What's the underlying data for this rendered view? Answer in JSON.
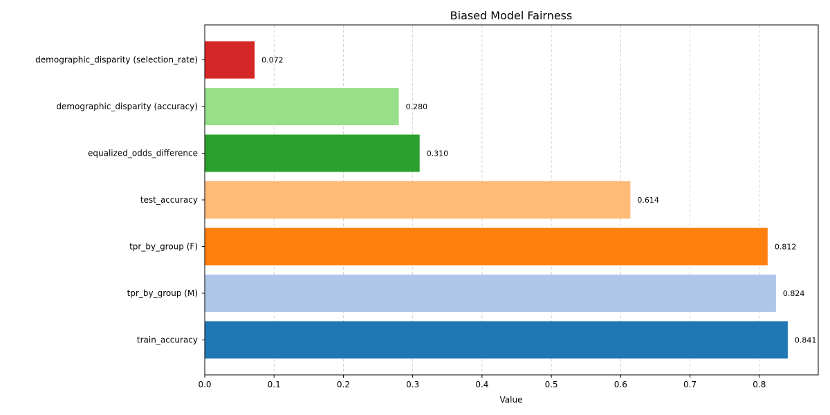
{
  "chart_data": {
    "type": "bar",
    "orientation": "horizontal",
    "title": "Biased Model Fairness",
    "xlabel": "Value",
    "ylabel": "",
    "xlim": [
      0,
      0.885
    ],
    "xticks": [
      "0.0",
      "0.1",
      "0.2",
      "0.3",
      "0.4",
      "0.5",
      "0.6",
      "0.7",
      "0.8"
    ],
    "grid": "x-dashed",
    "bars": [
      {
        "category": "train_accuracy",
        "value": 0.841,
        "label": "0.841",
        "color": "#1f77b4"
      },
      {
        "category": "tpr_by_group (M)",
        "value": 0.824,
        "label": "0.824",
        "color": "#aec7e8"
      },
      {
        "category": "tpr_by_group (F)",
        "value": 0.812,
        "label": "0.812",
        "color": "#ff7f0e"
      },
      {
        "category": "test_accuracy",
        "value": 0.614,
        "label": "0.614",
        "color": "#ffbb78"
      },
      {
        "category": "equalized_odds_difference",
        "value": 0.31,
        "label": "0.310",
        "color": "#2ca02c"
      },
      {
        "category": "demographic_disparity (accuracy)",
        "value": 0.28,
        "label": "0.280",
        "color": "#98df8a"
      },
      {
        "category": "demographic_disparity (selection_rate)",
        "value": 0.072,
        "label": "0.072",
        "color": "#d62728"
      }
    ]
  }
}
